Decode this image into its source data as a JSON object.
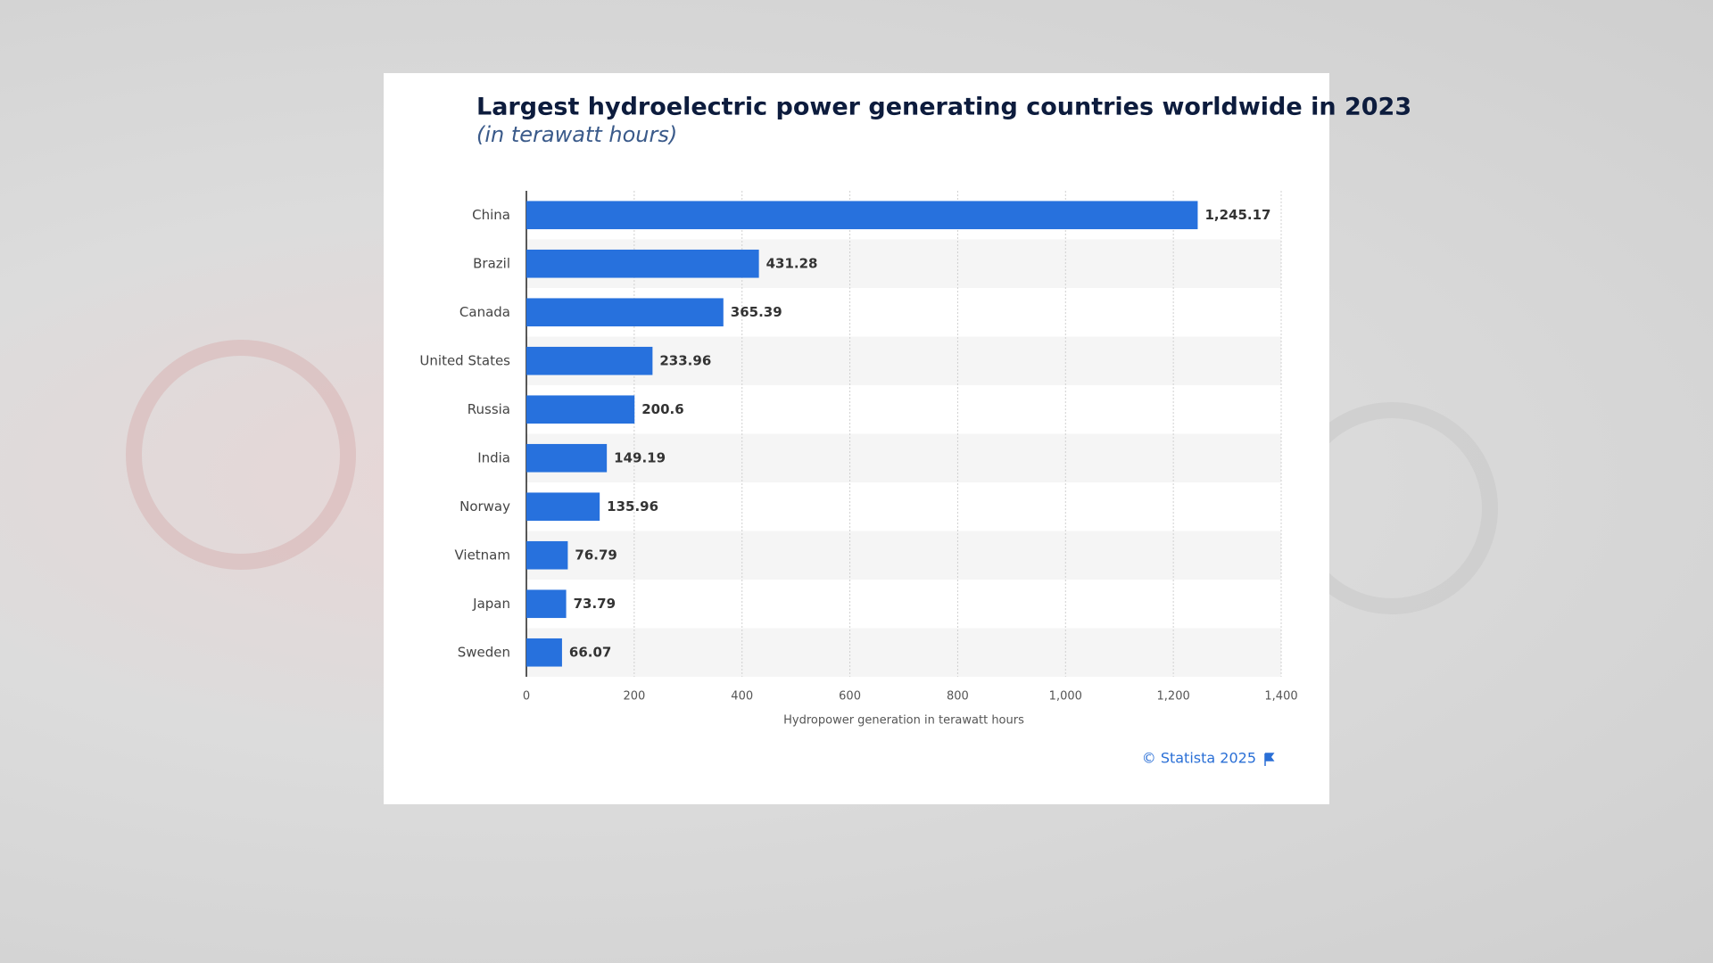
{
  "chart_data": {
    "type": "hbar",
    "title": "Largest hydroelectric power generating countries worldwide in 2023",
    "subtitle": "(in terawatt hours)",
    "x_label": "Hydropower generation in terawatt hours",
    "source": "© Statista 2025",
    "categories": [
      "China",
      "Brazil",
      "Canada",
      "United States",
      "Russia",
      "India",
      "Norway",
      "Vietnam",
      "Japan",
      "Sweden"
    ],
    "values": [
      1245.17,
      431.28,
      365.39,
      233.96,
      200.6,
      149.19,
      135.96,
      76.79,
      73.79,
      66.07
    ],
    "value_labels": [
      "1,245.17",
      "431.28",
      "365.39",
      "233.96",
      "200.6",
      "149.19",
      "135.96",
      "76.79",
      "73.79",
      "66.07"
    ],
    "color": "#2771dd",
    "xlim": [
      0,
      1400
    ],
    "xticks": [
      0,
      200,
      400,
      600,
      800,
      {
        "value": 1000,
        "label": "1,000"
      },
      {
        "value": 1200,
        "label": "1,200"
      },
      {
        "value": 1400,
        "label": "1,400"
      }
    ],
    "grid": true
  }
}
